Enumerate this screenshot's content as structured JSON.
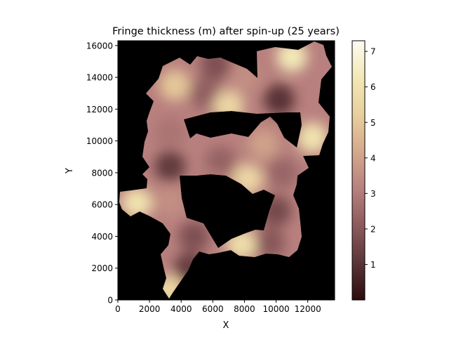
{
  "chart_data": {
    "type": "heatmap",
    "title": "Fringe thickness (m) after spin-up (25 years)",
    "xlabel": "X",
    "ylabel": "Y",
    "xlim": [
      0,
      13700
    ],
    "ylim": [
      0,
      16300
    ],
    "xticks": [
      0,
      2000,
      4000,
      6000,
      8000,
      10000,
      12000
    ],
    "yticks": [
      0,
      2000,
      4000,
      6000,
      8000,
      10000,
      12000,
      14000,
      16000
    ],
    "colorbar": {
      "min": 0,
      "max": 7.3,
      "ticks": [
        1,
        2,
        3,
        4,
        5,
        6,
        7
      ],
      "colormap": [
        "#2d0a0c",
        "#5a3538",
        "#8c5a5c",
        "#b8807e",
        "#d4a88c",
        "#e8cf9e",
        "#f2e8b5",
        "#fcfbf3"
      ]
    },
    "background_color": "#000000",
    "thickness_regions": [
      {
        "x": 4500,
        "y": 2000,
        "value": 1.3
      },
      {
        "x": 3200,
        "y": 600,
        "value": 5.5
      },
      {
        "x": 4800,
        "y": 4000,
        "value": 1.8
      },
      {
        "x": 3300,
        "y": 6200,
        "value": 3.5
      },
      {
        "x": 1200,
        "y": 6100,
        "value": 6.0
      },
      {
        "x": 3300,
        "y": 8400,
        "value": 1.2
      },
      {
        "x": 3300,
        "y": 10500,
        "value": 2.8
      },
      {
        "x": 3600,
        "y": 13500,
        "value": 5.0
      },
      {
        "x": 5500,
        "y": 13000,
        "value": 2.2
      },
      {
        "x": 6200,
        "y": 14800,
        "value": 1.8
      },
      {
        "x": 8000,
        "y": 14000,
        "value": 3.5
      },
      {
        "x": 7000,
        "y": 12200,
        "value": 5.5
      },
      {
        "x": 10200,
        "y": 12600,
        "value": 1.0
      },
      {
        "x": 11000,
        "y": 15300,
        "value": 6.3
      },
      {
        "x": 9200,
        "y": 9800,
        "value": 4.0
      },
      {
        "x": 12300,
        "y": 10200,
        "value": 6.0
      },
      {
        "x": 6500,
        "y": 8700,
        "value": 2.3
      },
      {
        "x": 8200,
        "y": 7600,
        "value": 5.5
      },
      {
        "x": 10400,
        "y": 8000,
        "value": 2.4
      },
      {
        "x": 10000,
        "y": 5600,
        "value": 1.6
      },
      {
        "x": 9600,
        "y": 3600,
        "value": 2.0
      },
      {
        "x": 7800,
        "y": 3500,
        "value": 5.8
      },
      {
        "x": 5900,
        "y": 7200,
        "value": 3.0
      }
    ]
  }
}
